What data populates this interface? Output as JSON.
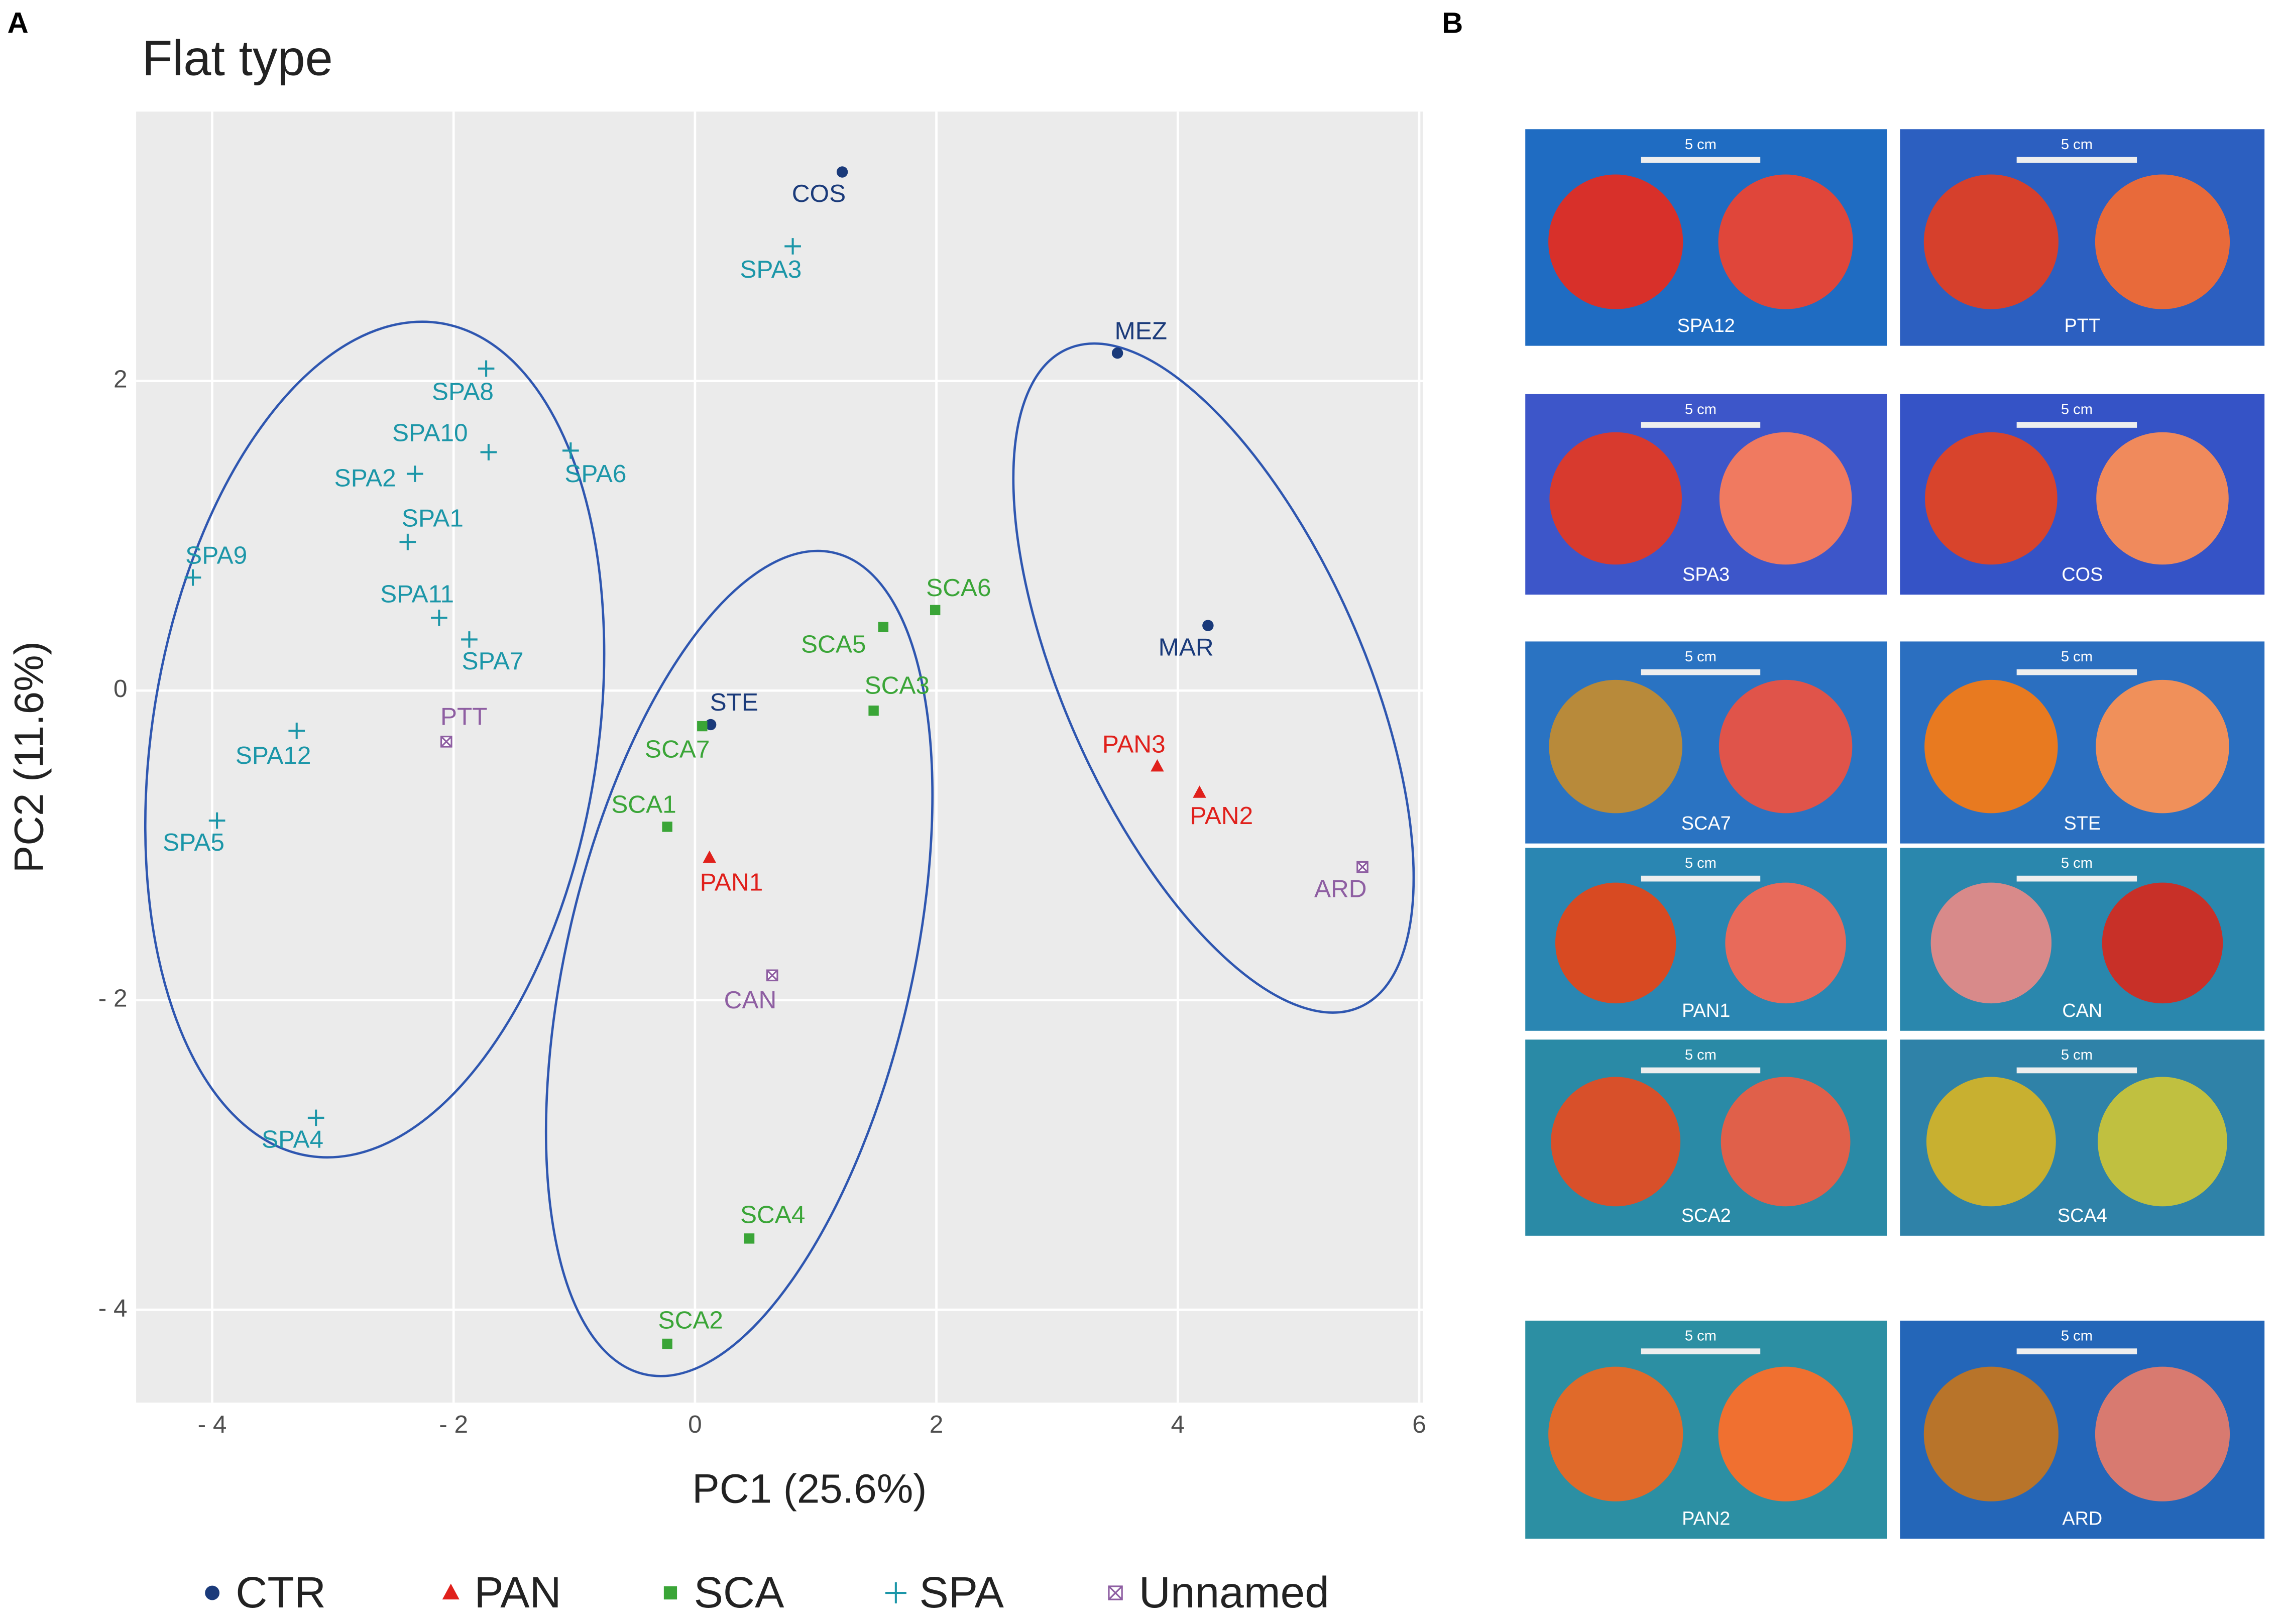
{
  "panel_a_label": "A",
  "panel_b_label": "B",
  "chart_data": {
    "type": "scatter",
    "title": "Flat type",
    "x_label": "PC1 (25.6%)",
    "y_label": "PC2 (11.6%)",
    "xlim": [
      -4.63,
      6.03
    ],
    "ylim": [
      -4.6,
      3.74
    ],
    "xticks": [
      {
        "value": -4,
        "label": "- 4"
      },
      {
        "value": -2,
        "label": "- 2"
      },
      0,
      2,
      4,
      6
    ],
    "yticks": [
      {
        "value": -4,
        "label": "- 4"
      },
      {
        "value": -2,
        "label": "- 2"
      },
      0,
      2
    ],
    "grid": true,
    "legend": "bottom",
    "series": [
      {
        "name": "CTR",
        "color": "#1a3a7a",
        "marker": "circle",
        "labels": [
          "COS",
          "MEZ",
          "MAR",
          "STE"
        ],
        "x": [
          1.22,
          3.5,
          4.25,
          0.13
        ],
        "values": [
          3.35,
          2.18,
          0.42,
          -0.22
        ]
      },
      {
        "name": "PAN",
        "color": "#e0201b",
        "marker": "triangle",
        "labels": [
          "PAN3",
          "PAN2",
          "PAN1"
        ],
        "x": [
          3.83,
          4.18,
          0.12
        ],
        "values": [
          -0.49,
          -0.66,
          -1.08
        ]
      },
      {
        "name": "SCA",
        "color": "#3aa537",
        "marker": "square",
        "labels": [
          "SCA6",
          "SCA5",
          "SCA3",
          "SCA7",
          "SCA1",
          "SCA4",
          "SCA2"
        ],
        "x": [
          1.99,
          1.56,
          1.48,
          0.06,
          -0.23,
          0.45,
          -0.23
        ],
        "values": [
          0.52,
          0.41,
          -0.13,
          -0.23,
          -0.88,
          -3.54,
          -4.22
        ]
      },
      {
        "name": "SPA",
        "color": "#1b96a8",
        "marker": "plus",
        "labels": [
          "SPA3",
          "SPA8",
          "SPA10",
          "SPA2",
          "SPA6",
          "SPA1",
          "SPA9",
          "SPA11",
          "SPA7",
          "SPA12",
          "SPA5",
          "SPA4"
        ],
        "x": [
          0.81,
          -1.73,
          -1.71,
          -2.32,
          -1.03,
          -2.38,
          -4.16,
          -2.12,
          -1.87,
          -3.3,
          -3.96,
          -3.14
        ],
        "values": [
          2.87,
          2.08,
          1.54,
          1.4,
          1.55,
          0.96,
          0.73,
          0.47,
          0.33,
          -0.26,
          -0.84,
          -2.76
        ]
      },
      {
        "name": "Unnamed",
        "color": "#8e5ea2",
        "marker": "boxx",
        "labels": [
          "PTT",
          "CAN",
          "ARD"
        ],
        "x": [
          -2.06,
          0.64,
          5.53
        ],
        "values": [
          -0.33,
          -1.84,
          -1.14
        ]
      }
    ]
  },
  "photos": {
    "scale_label": "5 cm",
    "items": [
      "SPA12",
      "PTT",
      "SPA3",
      "COS",
      "SCA7",
      "STE",
      "PAN1",
      "CAN",
      "SCA2",
      "SCA4",
      "PAN2",
      "ARD"
    ]
  }
}
